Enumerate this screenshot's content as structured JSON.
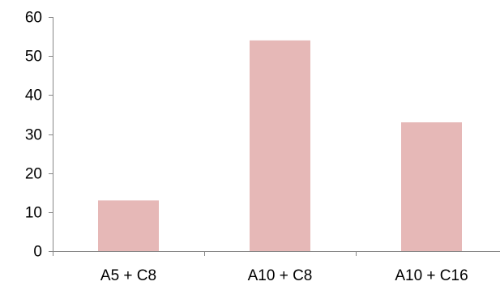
{
  "chart_data": {
    "type": "bar",
    "categories": [
      "A5 + C8",
      "A10 + C8",
      "A10 + C16"
    ],
    "values": [
      13,
      54,
      33
    ],
    "ylim": [
      0,
      60
    ],
    "yticks": [
      0,
      10,
      20,
      30,
      40,
      50,
      60
    ],
    "ytick_labels": [
      "0",
      "10",
      "20",
      "30",
      "40",
      "50",
      "60"
    ],
    "title": "",
    "xlabel": "",
    "ylabel": "",
    "grid": false,
    "bar_color": "#e6b8b7",
    "axis_color": "#868686"
  }
}
